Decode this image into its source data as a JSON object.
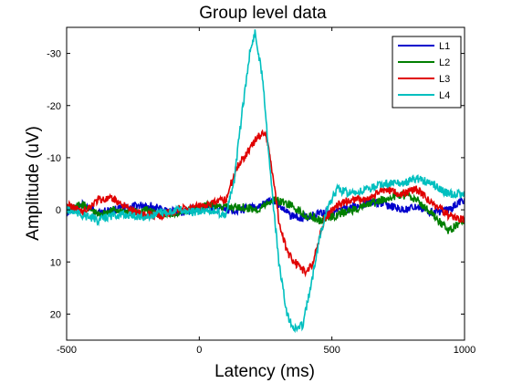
{
  "chart_data": {
    "type": "line",
    "title": "Group level data",
    "xlabel": "Latency (ms)",
    "ylabel": "Amplitude (uV)",
    "xlim": [
      -500,
      1000
    ],
    "ylim": [
      25,
      -35
    ],
    "y_reversed": true,
    "grid": false,
    "legend_position": "top-right",
    "x_ticks": [
      -500,
      0,
      500,
      1000
    ],
    "x_tick_labels": [
      "-500",
      "0",
      "500",
      "1000"
    ],
    "y_ticks": [
      -30,
      -20,
      -10,
      0,
      10,
      20
    ],
    "y_tick_labels": [
      "-30",
      "-20",
      "-10",
      "0",
      "10",
      "20"
    ],
    "series": [
      {
        "name": "L1",
        "color": "#0000cc",
        "x": [
          -500,
          -440,
          -380,
          -320,
          -260,
          -200,
          -140,
          -80,
          -20,
          40,
          100,
          160,
          220,
          280,
          340,
          400,
          460,
          520,
          580,
          640,
          700,
          760,
          820,
          880,
          940,
          1000
        ],
        "y": [
          0.5,
          -1,
          0.5,
          0,
          -0.5,
          -1,
          0,
          0.5,
          0,
          -0.5,
          0,
          0,
          -0.5,
          -2,
          1,
          1.5,
          0.5,
          0.5,
          -0.5,
          -1.5,
          -1,
          0,
          -0.5,
          0.5,
          0,
          -2
        ]
      },
      {
        "name": "L2",
        "color": "#007f00",
        "x": [
          -500,
          -440,
          -380,
          -320,
          -260,
          -200,
          -140,
          -80,
          -20,
          40,
          100,
          160,
          220,
          280,
          340,
          400,
          460,
          520,
          580,
          640,
          700,
          760,
          820,
          880,
          940,
          1000
        ],
        "y": [
          0,
          -1,
          1,
          0,
          0.5,
          0,
          1,
          0.5,
          0,
          -1,
          -0.5,
          -0.5,
          0,
          -2,
          -1,
          1,
          2,
          1,
          0,
          -1,
          -2,
          -3,
          -2,
          1,
          4,
          2
        ]
      },
      {
        "name": "L3",
        "color": "#e00000",
        "x": [
          -500,
          -440,
          -380,
          -320,
          -260,
          -200,
          -140,
          -80,
          -20,
          40,
          100,
          140,
          180,
          220,
          250,
          280,
          300,
          330,
          360,
          400,
          430,
          470,
          520,
          580,
          640,
          700,
          760,
          820,
          880,
          940,
          1000
        ],
        "y": [
          -1,
          0.5,
          -2,
          -2,
          0,
          1,
          1,
          0,
          -0.5,
          -1,
          -2,
          -8,
          -11,
          -14,
          -15,
          -6,
          2,
          8,
          10,
          12,
          10,
          2,
          -1,
          -2,
          -2,
          -4,
          -3,
          -4,
          -1,
          1,
          2
        ]
      },
      {
        "name": "L4",
        "color": "#00bfbf",
        "x": [
          -500,
          -440,
          -380,
          -320,
          -260,
          -200,
          -140,
          -80,
          -20,
          40,
          100,
          130,
          160,
          190,
          210,
          240,
          270,
          300,
          330,
          360,
          390,
          420,
          450,
          480,
          520,
          580,
          640,
          700,
          760,
          820,
          880,
          940,
          1000
        ],
        "y": [
          0,
          1,
          2,
          1,
          1,
          1.5,
          0.5,
          0,
          0.5,
          0,
          1,
          -5,
          -18,
          -30,
          -34,
          -25,
          -6,
          10,
          20,
          23,
          22,
          15,
          6,
          0,
          -4,
          -3,
          -4,
          -5,
          -5,
          -6,
          -5,
          -3,
          -3
        ]
      }
    ]
  }
}
